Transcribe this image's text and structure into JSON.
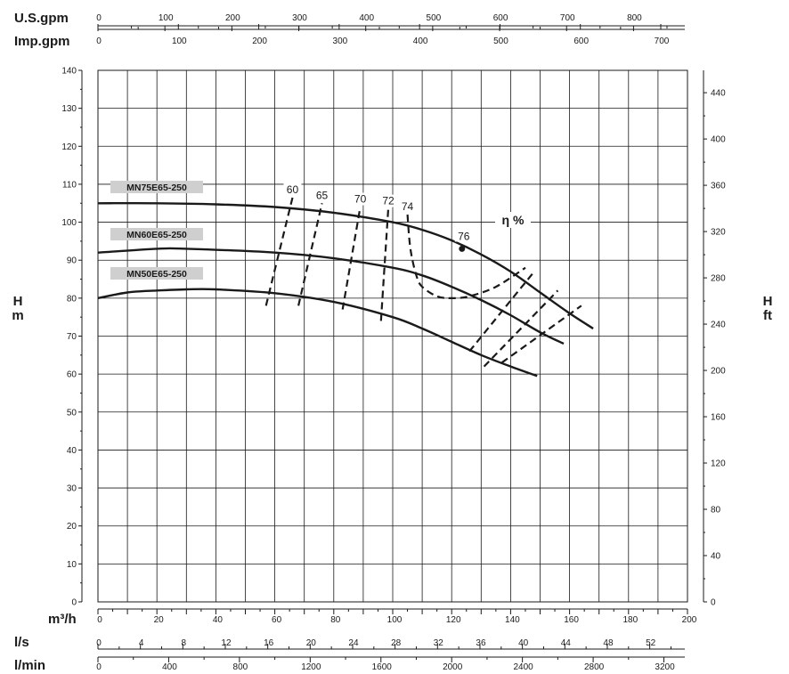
{
  "chart_data": {
    "type": "line",
    "title": "",
    "x_main": {
      "label": "m³/h",
      "range": [
        0,
        200
      ],
      "ticks": [
        0,
        20,
        40,
        60,
        80,
        100,
        120,
        140,
        160,
        180,
        200
      ]
    },
    "x_secondary_bottom": [
      {
        "label": "l/s",
        "factor": 3.6,
        "ticks": [
          0,
          4,
          8,
          12,
          16,
          20,
          24,
          28,
          32,
          36,
          40,
          44,
          48,
          52
        ]
      },
      {
        "label": "l/min",
        "factor": 0.06,
        "ticks": [
          0,
          400,
          800,
          1200,
          1600,
          2000,
          2400,
          2800,
          3200
        ]
      }
    ],
    "x_secondary_top": [
      {
        "label": "U.S.gpm",
        "factor": 0.22712,
        "ticks": [
          0,
          100,
          200,
          300,
          400,
          500,
          600,
          700,
          800
        ]
      },
      {
        "label": "Imp.gpm",
        "factor": 0.27277,
        "ticks": [
          0,
          100,
          200,
          300,
          400,
          500,
          600,
          700
        ]
      }
    ],
    "y_left": {
      "label_top": "H",
      "label_bottom": "m",
      "range": [
        0,
        140
      ],
      "ticks": [
        0,
        10,
        20,
        30,
        40,
        50,
        60,
        70,
        80,
        90,
        100,
        110,
        120,
        130,
        140
      ]
    },
    "y_right": {
      "label_top": "H",
      "label_bottom": "ft",
      "factor": 0.3048,
      "ticks": [
        0,
        40,
        80,
        120,
        160,
        200,
        240,
        280,
        320,
        360,
        400,
        440
      ]
    },
    "grid": true,
    "series": [
      {
        "name": "MN75E65-250",
        "x": [
          0,
          20,
          40,
          60,
          80,
          100,
          110,
          120,
          130,
          140,
          150,
          160,
          168
        ],
        "y": [
          105,
          105,
          104.7,
          104,
          102.5,
          100,
          98,
          95.2,
          91.5,
          87,
          81.5,
          76,
          72
        ]
      },
      {
        "name": "MN60E65-250",
        "x": [
          0,
          20,
          30,
          60,
          80,
          100,
          110,
          120,
          130,
          140,
          150,
          158
        ],
        "y": [
          92,
          93,
          93,
          92,
          90.5,
          88,
          86,
          83,
          79.5,
          75.5,
          71,
          68
        ]
      },
      {
        "name": "MN50E65-250",
        "x": [
          0,
          10,
          20,
          30,
          40,
          60,
          80,
          100,
          110,
          120,
          130,
          140,
          149
        ],
        "y": [
          80,
          81.5,
          82,
          82.3,
          82.3,
          81.3,
          79,
          75,
          72,
          68.5,
          65,
          62,
          59.5
        ]
      }
    ],
    "efficiency": {
      "label": "η %",
      "iso_lines": [
        {
          "value": "60",
          "x": [
            57,
            66
          ],
          "y": [
            78,
            106.5
          ]
        },
        {
          "value": "65",
          "x": [
            68,
            76
          ],
          "y": [
            78,
            105
          ]
        },
        {
          "value": "70",
          "x": [
            83,
            89
          ],
          "y": [
            77,
            104
          ]
        },
        {
          "value": "72",
          "x": [
            96,
            98.5
          ],
          "y": [
            74,
            103.5
          ]
        },
        {
          "value": "74",
          "x": [
            105,
            106,
            108,
            110,
            115,
            120,
            126,
            135,
            145
          ],
          "y": [
            102,
            93,
            86,
            83,
            80.5,
            80,
            80.5,
            83,
            88
          ]
        }
      ],
      "bep": {
        "value": "76",
        "x": 123.5,
        "y": 93
      },
      "band_lines": [
        {
          "x": [
            126,
            148
          ],
          "y": [
            66,
            87
          ]
        },
        {
          "x": [
            131,
            156
          ],
          "y": [
            62,
            82
          ]
        },
        {
          "x": [
            137,
            164
          ],
          "y": [
            63,
            78
          ]
        }
      ]
    }
  }
}
